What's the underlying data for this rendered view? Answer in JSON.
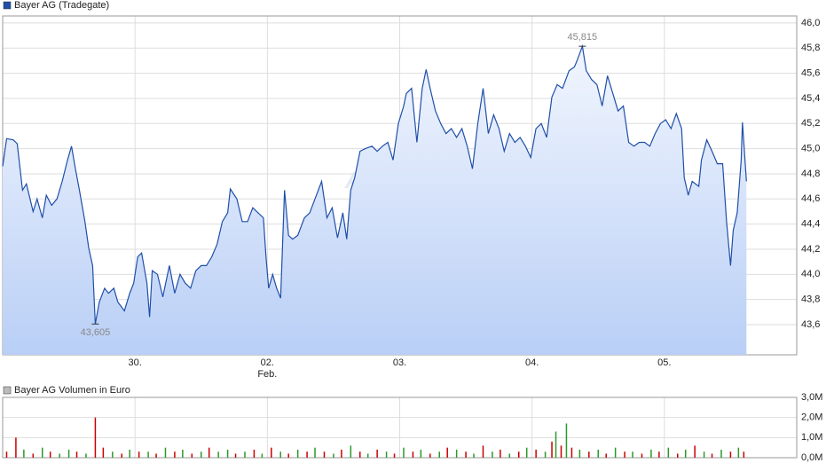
{
  "chart_data": [
    {
      "type": "line",
      "title": "Bayer AG (Tradegate)",
      "color": "#1f4fa8",
      "watermark": "ARIVA.DE",
      "x": [
        0.0,
        0.03,
        0.08,
        0.11,
        0.15,
        0.18,
        0.23,
        0.26,
        0.3,
        0.33,
        0.37,
        0.41,
        0.45,
        0.49,
        0.52,
        0.55,
        0.58,
        0.62,
        0.65,
        0.68,
        0.7,
        0.73,
        0.77,
        0.8,
        0.84,
        0.87,
        0.92,
        0.96,
        0.99,
        1.02,
        1.05,
        1.09,
        1.11,
        1.13,
        1.17,
        1.21,
        1.26,
        1.3,
        1.34,
        1.38,
        1.42,
        1.46,
        1.5,
        1.54,
        1.58,
        1.62,
        1.66,
        1.7,
        1.72,
        1.77,
        1.81,
        1.85,
        1.89,
        1.93,
        1.97,
        1.99,
        2.01,
        2.04,
        2.07,
        2.1,
        2.13,
        2.16,
        2.19,
        2.23,
        2.28,
        2.32,
        2.36,
        2.41,
        2.45,
        2.49,
        2.53,
        2.57,
        2.6,
        2.63,
        2.66,
        2.7,
        2.74,
        2.79,
        2.83,
        2.87,
        2.91,
        2.95,
        2.99,
        3.03,
        3.05,
        3.09,
        3.13,
        3.17,
        3.2,
        3.23,
        3.27,
        3.31,
        3.35,
        3.39,
        3.43,
        3.47,
        3.51,
        3.55,
        3.59,
        3.63,
        3.67,
        3.71,
        3.75,
        3.79,
        3.83,
        3.87,
        3.91,
        3.95,
        3.99,
        4.03,
        4.07,
        4.11,
        4.15,
        4.19,
        4.23,
        4.28,
        4.32,
        4.34,
        4.38,
        4.41,
        4.45,
        4.49,
        4.53,
        4.57,
        4.61,
        4.65,
        4.69,
        4.73,
        4.77,
        4.81,
        4.85,
        4.89,
        4.93,
        4.97,
        5.01,
        5.05,
        5.09,
        5.13,
        5.15,
        5.18,
        5.21,
        5.26,
        5.28,
        5.32,
        5.36,
        5.4,
        5.44,
        5.47,
        5.5,
        5.52,
        5.55,
        5.58,
        5.59,
        5.62
      ],
      "values": [
        44.86,
        45.08,
        45.07,
        45.04,
        44.67,
        44.72,
        44.5,
        44.6,
        44.45,
        44.63,
        44.55,
        44.6,
        44.74,
        44.91,
        45.02,
        44.84,
        44.67,
        44.43,
        44.21,
        44.07,
        43.605,
        43.78,
        43.89,
        43.85,
        43.89,
        43.78,
        43.71,
        43.85,
        43.93,
        44.14,
        44.17,
        43.93,
        43.66,
        44.03,
        44.0,
        43.82,
        44.07,
        43.85,
        44.0,
        43.93,
        43.89,
        44.03,
        44.07,
        44.07,
        44.14,
        44.24,
        44.42,
        44.49,
        44.68,
        44.6,
        44.42,
        44.42,
        44.53,
        44.49,
        44.45,
        44.14,
        43.89,
        44.0,
        43.89,
        43.81,
        44.67,
        44.31,
        44.28,
        44.31,
        44.45,
        44.49,
        44.6,
        44.74,
        44.45,
        44.53,
        44.29,
        44.49,
        44.28,
        44.67,
        44.77,
        44.98,
        45.0,
        45.02,
        44.98,
        45.02,
        45.05,
        44.91,
        45.2,
        45.34,
        45.44,
        45.48,
        45.05,
        45.48,
        45.63,
        45.48,
        45.3,
        45.2,
        45.12,
        45.16,
        45.09,
        45.16,
        45.02,
        44.84,
        45.2,
        45.48,
        45.12,
        45.27,
        45.16,
        44.98,
        45.12,
        45.05,
        45.09,
        45.02,
        44.93,
        45.16,
        45.2,
        45.09,
        45.41,
        45.51,
        45.48,
        45.62,
        45.65,
        45.7,
        45.815,
        45.62,
        45.55,
        45.51,
        45.34,
        45.58,
        45.44,
        45.3,
        45.34,
        45.05,
        45.02,
        45.05,
        45.05,
        45.02,
        45.12,
        45.2,
        45.23,
        45.16,
        45.28,
        45.16,
        44.77,
        44.63,
        44.74,
        44.7,
        44.91,
        45.07,
        44.98,
        44.88,
        44.88,
        44.42,
        44.07,
        44.35,
        44.49,
        44.91,
        45.21,
        44.74
      ],
      "annotations": [
        {
          "x": 0.7,
          "value": 43.605,
          "label": "43,605"
        },
        {
          "x": 4.38,
          "value": 45.815,
          "label": "45,815"
        }
      ],
      "xlim": [
        0,
        6
      ],
      "ylim": [
        43.36,
        46.056
      ],
      "xticks": [
        {
          "value": 1,
          "label": "30."
        },
        {
          "value": 2,
          "label": "02."
        },
        {
          "value": 3,
          "label": "03."
        },
        {
          "value": 4,
          "label": "04."
        },
        {
          "value": 5,
          "label": "05."
        }
      ],
      "xtick_sublabels": [
        {
          "value": 2,
          "label": "Feb."
        }
      ],
      "yticks": [
        {
          "value": 43.6,
          "label": "43,6"
        },
        {
          "value": 43.8,
          "label": "43,8"
        },
        {
          "value": 44.0,
          "label": "44,0"
        },
        {
          "value": 44.2,
          "label": "44,2"
        },
        {
          "value": 44.4,
          "label": "44,4"
        },
        {
          "value": 44.6,
          "label": "44,6"
        },
        {
          "value": 44.8,
          "label": "44,8"
        },
        {
          "value": 45.0,
          "label": "45,0"
        },
        {
          "value": 45.2,
          "label": "45,2"
        },
        {
          "value": 45.4,
          "label": "45,4"
        },
        {
          "value": 45.6,
          "label": "45,6"
        },
        {
          "value": 45.8,
          "label": "45,8"
        },
        {
          "value": 46.0,
          "label": "46,0"
        }
      ],
      "grid": true
    },
    {
      "type": "bar",
      "title": "Bayer AG Volumen in Euro",
      "color": "#bbbbbb",
      "x": [
        0.03,
        0.1,
        0.16,
        0.23,
        0.3,
        0.36,
        0.43,
        0.5,
        0.56,
        0.63,
        0.7,
        0.76,
        0.83,
        0.9,
        0.96,
        1.03,
        1.1,
        1.16,
        1.23,
        1.3,
        1.36,
        1.43,
        1.5,
        1.56,
        1.63,
        1.7,
        1.76,
        1.83,
        1.9,
        1.96,
        2.03,
        2.1,
        2.16,
        2.23,
        2.3,
        2.36,
        2.43,
        2.5,
        2.56,
        2.63,
        2.7,
        2.76,
        2.83,
        2.9,
        2.96,
        3.03,
        3.1,
        3.16,
        3.23,
        3.3,
        3.36,
        3.43,
        3.5,
        3.56,
        3.63,
        3.7,
        3.76,
        3.83,
        3.9,
        3.96,
        4.03,
        4.1,
        4.15,
        4.18,
        4.22,
        4.26,
        4.3,
        4.36,
        4.43,
        4.5,
        4.56,
        4.63,
        4.7,
        4.76,
        4.83,
        4.9,
        4.96,
        5.03,
        5.1,
        5.16,
        5.23,
        5.3,
        5.36,
        5.43,
        5.5,
        5.56,
        5.6
      ],
      "values": [
        0.3,
        1.0,
        0.4,
        0.2,
        0.5,
        0.3,
        0.2,
        0.4,
        0.3,
        0.2,
        2.0,
        0.5,
        0.3,
        0.2,
        0.4,
        0.3,
        0.3,
        0.2,
        0.5,
        0.3,
        0.4,
        0.2,
        0.3,
        0.5,
        0.3,
        0.4,
        0.2,
        0.3,
        0.4,
        0.2,
        0.5,
        0.3,
        0.2,
        0.4,
        0.3,
        0.5,
        0.3,
        0.2,
        0.4,
        0.6,
        0.3,
        0.2,
        0.4,
        0.3,
        0.2,
        0.5,
        0.3,
        0.4,
        0.2,
        0.3,
        0.5,
        0.4,
        0.3,
        0.2,
        0.6,
        0.3,
        0.4,
        0.2,
        0.3,
        0.5,
        0.4,
        0.3,
        0.8,
        1.3,
        0.6,
        1.7,
        0.5,
        0.4,
        0.3,
        0.4,
        0.2,
        0.5,
        0.3,
        0.3,
        0.2,
        0.4,
        0.3,
        0.5,
        0.2,
        0.4,
        0.6,
        0.3,
        0.2,
        0.4,
        0.3,
        0.5,
        0.3
      ],
      "colors": [
        "#cc0000",
        "#cc0000",
        "#2a9a2a",
        "#cc0000",
        "#2a9a2a",
        "#cc0000",
        "#2a9a2a",
        "#2a9a2a",
        "#cc0000",
        "#2a9a2a",
        "#cc0000",
        "#cc0000",
        "#2a9a2a",
        "#cc0000",
        "#2a9a2a",
        "#cc0000",
        "#2a9a2a",
        "#cc0000",
        "#2a9a2a",
        "#cc0000",
        "#2a9a2a",
        "#cc0000",
        "#2a9a2a",
        "#cc0000",
        "#2a9a2a",
        "#2a9a2a",
        "#cc0000",
        "#2a9a2a",
        "#cc0000",
        "#2a9a2a",
        "#cc0000",
        "#2a9a2a",
        "#cc0000",
        "#2a9a2a",
        "#cc0000",
        "#2a9a2a",
        "#cc0000",
        "#2a9a2a",
        "#cc0000",
        "#2a9a2a",
        "#cc0000",
        "#2a9a2a",
        "#cc0000",
        "#2a9a2a",
        "#cc0000",
        "#2a9a2a",
        "#cc0000",
        "#2a9a2a",
        "#cc0000",
        "#2a9a2a",
        "#cc0000",
        "#2a9a2a",
        "#cc0000",
        "#2a9a2a",
        "#cc0000",
        "#2a9a2a",
        "#cc0000",
        "#2a9a2a",
        "#cc0000",
        "#2a9a2a",
        "#cc0000",
        "#2a9a2a",
        "#cc0000",
        "#2a9a2a",
        "#cc0000",
        "#2a9a2a",
        "#cc0000",
        "#2a9a2a",
        "#cc0000",
        "#2a9a2a",
        "#cc0000",
        "#2a9a2a",
        "#cc0000",
        "#2a9a2a",
        "#cc0000",
        "#2a9a2a",
        "#cc0000",
        "#2a9a2a",
        "#cc0000",
        "#2a9a2a",
        "#cc0000",
        "#2a9a2a",
        "#cc0000",
        "#2a9a2a",
        "#cc0000",
        "#2a9a2a",
        "#cc0000"
      ],
      "xlim": [
        0,
        6
      ],
      "ylim": [
        0,
        3
      ],
      "xticks": [
        {
          "value": 1,
          "label": "30."
        },
        {
          "value": 2,
          "label": "02."
        },
        {
          "value": 3,
          "label": "03."
        },
        {
          "value": 4,
          "label": "04."
        },
        {
          "value": 5,
          "label": "05."
        }
      ],
      "yticks": [
        {
          "value": 0,
          "label": "0,0M"
        },
        {
          "value": 1,
          "label": "1,0M"
        },
        {
          "value": 2,
          "label": "2,0M"
        },
        {
          "value": 3,
          "label": "3,0M"
        }
      ],
      "grid": true
    }
  ]
}
